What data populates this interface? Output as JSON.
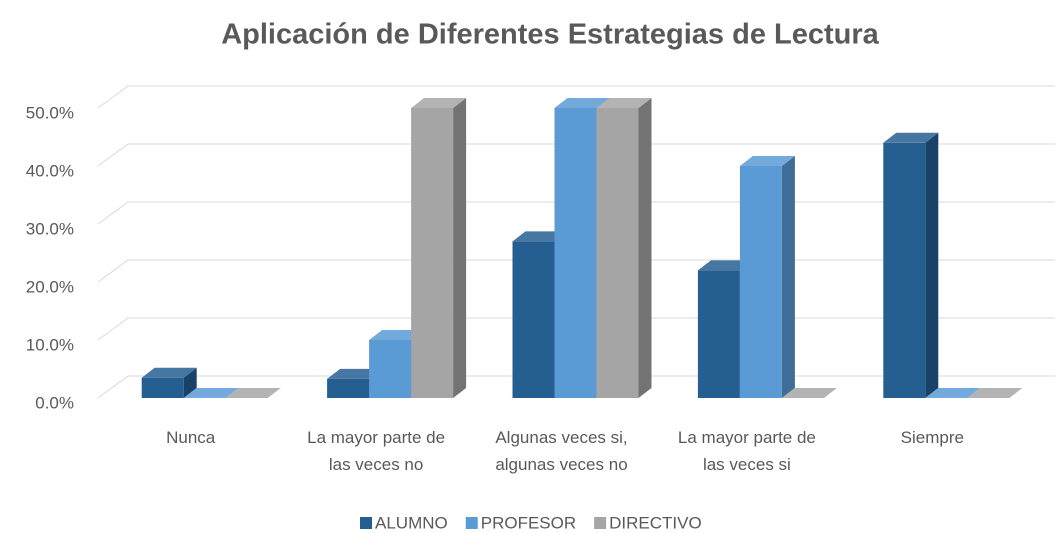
{
  "chart_data": {
    "type": "bar3d",
    "title": "Aplicación de Diferentes Estrategias de Lectura",
    "categories": [
      "Nunca",
      "La mayor parte de las veces no",
      "Algunas veces si, algunas veces no",
      "La mayor parte de las veces si",
      "Siempre"
    ],
    "series": [
      {
        "name": "ALUMNO",
        "color": "#255e91",
        "values": [
          3.5,
          3.3,
          27,
          22,
          44
        ]
      },
      {
        "name": "PROFESOR",
        "color": "#5b9bd5",
        "values": [
          0,
          10,
          50,
          40,
          0
        ]
      },
      {
        "name": "DIRECTIVO",
        "color": "#a5a5a5",
        "values": [
          0,
          50,
          50,
          0,
          0
        ]
      }
    ],
    "ylim": [
      0,
      50
    ],
    "yticks": [
      {
        "value": 0,
        "label": "0.0%"
      },
      {
        "value": 10,
        "label": "10.0%"
      },
      {
        "value": 20,
        "label": "20.0%"
      },
      {
        "value": 30,
        "label": "30.0%"
      },
      {
        "value": 40,
        "label": "40.0%"
      },
      {
        "value": 50,
        "label": "50.0%"
      }
    ],
    "grid": true,
    "legend": "bottom"
  }
}
